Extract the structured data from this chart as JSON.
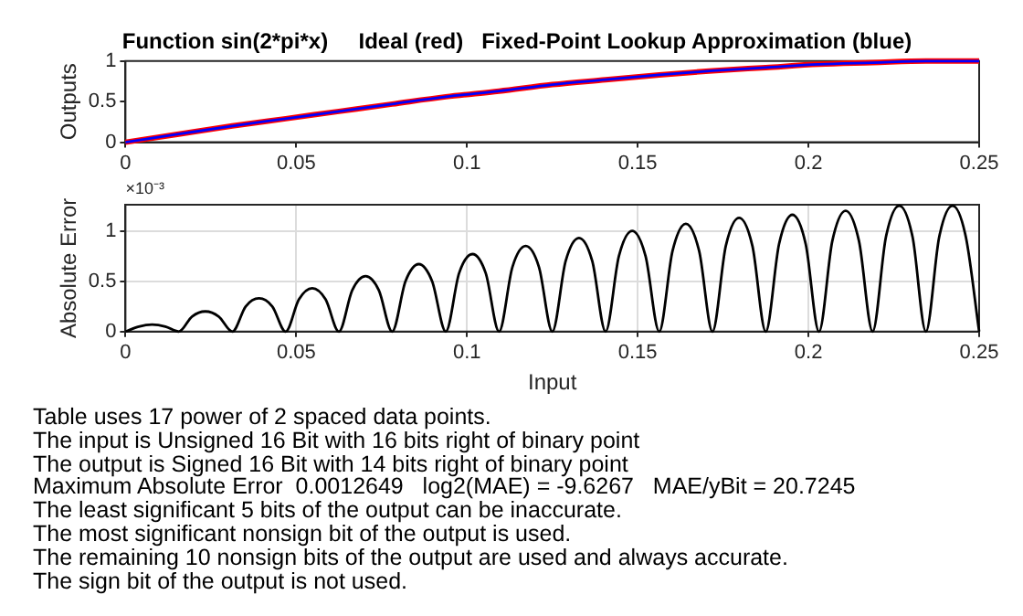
{
  "chart_data": [
    {
      "type": "line",
      "title": "Function sin(2*pi*x)     Ideal (red)   Fixed-Point Lookup Approximation (blue)",
      "ylabel": "Outputs",
      "xlim": [
        0,
        0.25
      ],
      "xticks": [
        0,
        0.05,
        0.1,
        0.15,
        0.2,
        0.25
      ],
      "ylim": [
        0,
        1
      ],
      "yticks": [
        0,
        0.5,
        1
      ],
      "grid": false,
      "legend": false,
      "x": [
        0,
        0.0156,
        0.0313,
        0.0469,
        0.0625,
        0.0781,
        0.0938,
        0.1094,
        0.125,
        0.1406,
        0.1563,
        0.1719,
        0.1875,
        0.2031,
        0.2188,
        0.2344,
        0.25
      ],
      "series": [
        {
          "color": "#ff0000",
          "values": [
            0,
            0.1,
            0.2,
            0.29,
            0.38,
            0.47,
            0.56,
            0.63,
            0.71,
            0.77,
            0.83,
            0.88,
            0.92,
            0.96,
            0.98,
            1.0,
            1.0
          ]
        },
        {
          "color": "#0000ff",
          "values": [
            0,
            0.1,
            0.2,
            0.29,
            0.38,
            0.47,
            0.56,
            0.63,
            0.71,
            0.77,
            0.83,
            0.88,
            0.92,
            0.96,
            0.98,
            1.0,
            1.0
          ]
        }
      ]
    },
    {
      "type": "line",
      "xlabel": "Input",
      "ylabel": "Absolute Error",
      "annotations": [
        "×10⁻³"
      ],
      "xlim": [
        0,
        0.25
      ],
      "xticks": [
        0,
        0.05,
        0.1,
        0.15,
        0.2,
        0.25
      ],
      "ylim": [
        0,
        1.26
      ],
      "yticks": [
        0,
        0.5,
        1
      ],
      "grid": true,
      "legend": false,
      "x": [
        0,
        0.0039,
        0.0078,
        0.0117,
        0.0156,
        0.0195,
        0.0234,
        0.0273,
        0.0313,
        0.0352,
        0.0391,
        0.043,
        0.0469,
        0.0508,
        0.0547,
        0.0586,
        0.0625,
        0.0664,
        0.0703,
        0.0742,
        0.0781,
        0.082,
        0.0859,
        0.0898,
        0.0938,
        0.0977,
        0.1016,
        0.1055,
        0.1094,
        0.1133,
        0.1172,
        0.1211,
        0.125,
        0.1289,
        0.1328,
        0.1367,
        0.1406,
        0.1445,
        0.1484,
        0.1523,
        0.1563,
        0.1602,
        0.1641,
        0.168,
        0.1719,
        0.1758,
        0.1797,
        0.1836,
        0.1875,
        0.1914,
        0.1953,
        0.1992,
        0.2031,
        0.207,
        0.2109,
        0.2148,
        0.2188,
        0.2227,
        0.2266,
        0.2305,
        0.2344,
        0.2383,
        0.2422,
        0.2461,
        0.25
      ],
      "series": [
        {
          "color": "#000000",
          "values": [
            0,
            0.05,
            0.07,
            0.05,
            0,
            0.15,
            0.2,
            0.15,
            0,
            0.25,
            0.33,
            0.25,
            0,
            0.32,
            0.43,
            0.32,
            0,
            0.41,
            0.55,
            0.41,
            0,
            0.5,
            0.67,
            0.5,
            0,
            0.58,
            0.77,
            0.58,
            0,
            0.64,
            0.85,
            0.64,
            0,
            0.7,
            0.93,
            0.7,
            0,
            0.75,
            1.0,
            0.75,
            0,
            0.8,
            1.07,
            0.8,
            0,
            0.85,
            1.13,
            0.85,
            0,
            0.87,
            1.16,
            0.87,
            0,
            0.9,
            1.2,
            0.9,
            0,
            0.94,
            1.25,
            0.94,
            0,
            0.94,
            1.25,
            0.94,
            0
          ]
        }
      ]
    },
    {
      "type": "other",
      "annotations": [
        "Table uses 17 power of 2 spaced data points.",
        "The input is Unsigned 16 Bit with 16 bits right of binary point",
        "The output is Signed 16 Bit with 14 bits right of binary point",
        "Maximum Absolute Error  0.0012649   log2(MAE) = -9.6267   MAE/yBit = 20.7245",
        "The least significant 5 bits of the output can be inaccurate.",
        "The most significant nonsign bit of the output is used.",
        "The remaining 10 nonsign bits of the output are used and always accurate.",
        "The sign bit of the output is not used."
      ]
    }
  ]
}
